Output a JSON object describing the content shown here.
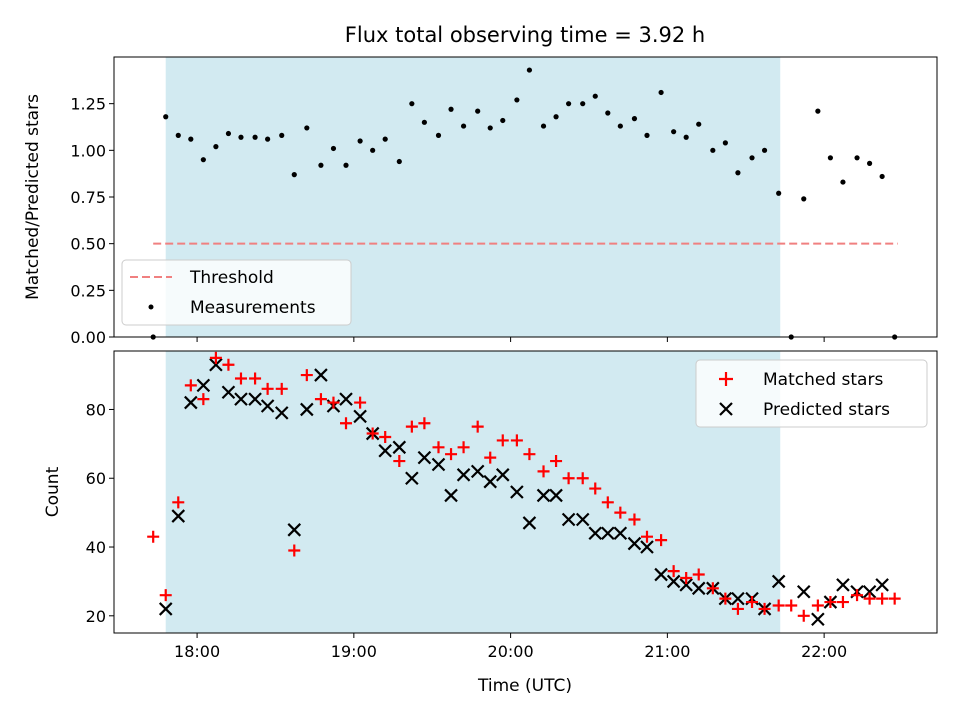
{
  "figure": {
    "title": "Flux total observing time = 3.92 h",
    "xlabel": "Time (UTC)",
    "x_ticks": [
      "18:00",
      "19:00",
      "20:00",
      "21:00",
      "22:00"
    ],
    "x_tick_hours": [
      18,
      19,
      20,
      21,
      22
    ],
    "xlim_hours": [
      17.47,
      22.72
    ],
    "shaded_interval_hours": [
      17.8,
      21.72
    ],
    "shade_color": "#add8e6"
  },
  "chart_data": [
    {
      "type": "scatter",
      "panel": "top",
      "ylabel": "Matched/Predicted stars",
      "ylim": [
        0,
        1.5
      ],
      "y_ticks": [
        0.0,
        0.25,
        0.5,
        0.75,
        1.0,
        1.25
      ],
      "y_tick_labels": [
        "0.00",
        "0.25",
        "0.50",
        "0.75",
        "1.00",
        "1.25"
      ],
      "threshold": {
        "name": "Threshold",
        "value": 0.5,
        "x_range_hours": [
          17.72,
          22.47
        ],
        "color": "#f08080"
      },
      "legend": {
        "location": "lower-left",
        "entries": [
          "Threshold",
          "Measurements"
        ]
      },
      "series": [
        {
          "name": "Measurements",
          "color": "#000000",
          "marker": "dot",
          "x_hours": [
            17.72,
            17.8,
            17.88,
            17.96,
            18.04,
            18.12,
            18.2,
            18.28,
            18.37,
            18.45,
            18.54,
            18.62,
            18.7,
            18.79,
            18.87,
            18.95,
            19.04,
            19.12,
            19.2,
            19.29,
            19.37,
            19.45,
            19.54,
            19.62,
            19.7,
            19.79,
            19.87,
            19.95,
            20.04,
            20.12,
            20.21,
            20.29,
            20.37,
            20.46,
            20.54,
            20.62,
            20.7,
            20.79,
            20.87,
            20.96,
            21.04,
            21.12,
            21.2,
            21.29,
            21.37,
            21.45,
            21.54,
            21.62,
            21.71,
            21.79,
            21.87,
            21.96,
            22.04,
            22.12,
            22.21,
            22.29,
            22.37,
            22.45
          ],
          "y": [
            0.0,
            1.18,
            1.08,
            1.06,
            0.95,
            1.02,
            1.09,
            1.07,
            1.07,
            1.06,
            1.08,
            0.87,
            1.12,
            0.92,
            1.01,
            0.92,
            1.05,
            1.0,
            1.06,
            0.94,
            1.25,
            1.15,
            1.08,
            1.22,
            1.13,
            1.21,
            1.12,
            1.16,
            1.27,
            1.43,
            1.13,
            1.18,
            1.25,
            1.25,
            1.29,
            1.2,
            1.13,
            1.17,
            1.08,
            1.31,
            1.1,
            1.07,
            1.14,
            1.0,
            1.04,
            0.88,
            0.96,
            1.0,
            0.77,
            0.0,
            0.74,
            1.21,
            0.96,
            0.83,
            0.96,
            0.93,
            0.86,
            0.0
          ]
        }
      ]
    },
    {
      "type": "scatter",
      "panel": "bottom",
      "ylabel": "Count",
      "ylim": [
        15,
        97
      ],
      "y_ticks": [
        20,
        40,
        60,
        80
      ],
      "y_tick_labels": [
        "20",
        "40",
        "60",
        "80"
      ],
      "legend": {
        "location": "top-right",
        "entries": [
          "Matched stars",
          "Predicted stars"
        ]
      },
      "series": [
        {
          "name": "Matched stars",
          "color": "#ff0000",
          "marker": "plus",
          "x_hours": [
            17.72,
            17.8,
            17.88,
            17.96,
            18.04,
            18.12,
            18.2,
            18.28,
            18.37,
            18.45,
            18.54,
            18.62,
            18.7,
            18.79,
            18.87,
            18.95,
            19.04,
            19.12,
            19.2,
            19.29,
            19.37,
            19.45,
            19.54,
            19.62,
            19.7,
            19.79,
            19.87,
            19.95,
            20.04,
            20.12,
            20.21,
            20.29,
            20.37,
            20.46,
            20.54,
            20.62,
            20.7,
            20.79,
            20.87,
            20.96,
            21.04,
            21.12,
            21.2,
            21.29,
            21.37,
            21.45,
            21.54,
            21.62,
            21.71,
            21.79,
            21.87,
            21.96,
            22.04,
            22.12,
            22.21,
            22.29,
            22.37,
            22.45
          ],
          "y": [
            43,
            26,
            53,
            87,
            83,
            95,
            93,
            89,
            89,
            86,
            86,
            39,
            90,
            83,
            82,
            76,
            82,
            73,
            72,
            65,
            75,
            76,
            69,
            67,
            69,
            75,
            66,
            71,
            71,
            67,
            62,
            65,
            60,
            60,
            57,
            53,
            50,
            48,
            43,
            42,
            33,
            31,
            32,
            28,
            25,
            22,
            24,
            22,
            23,
            23,
            20,
            23,
            24,
            24,
            26,
            25,
            25,
            25
          ]
        },
        {
          "name": "Predicted stars",
          "color": "#000000",
          "marker": "x",
          "x_hours": [
            17.8,
            17.88,
            17.96,
            18.04,
            18.12,
            18.2,
            18.28,
            18.37,
            18.45,
            18.54,
            18.62,
            18.7,
            18.79,
            18.87,
            18.95,
            19.04,
            19.12,
            19.2,
            19.29,
            19.37,
            19.45,
            19.54,
            19.62,
            19.7,
            19.79,
            19.87,
            19.95,
            20.04,
            20.12,
            20.21,
            20.29,
            20.37,
            20.46,
            20.54,
            20.62,
            20.7,
            20.79,
            20.87,
            20.96,
            21.04,
            21.12,
            21.2,
            21.29,
            21.37,
            21.45,
            21.54,
            21.62,
            21.71,
            21.87,
            21.96,
            22.04,
            22.12,
            22.21,
            22.29,
            22.37
          ],
          "y": [
            22,
            49,
            82,
            87,
            93,
            85,
            83,
            83,
            81,
            79,
            45,
            80,
            90,
            81,
            83,
            78,
            73,
            68,
            69,
            60,
            66,
            64,
            55,
            61,
            62,
            59,
            61,
            56,
            47,
            55,
            55,
            48,
            48,
            44,
            44,
            44,
            41,
            40,
            32,
            30,
            29,
            28,
            28,
            25,
            25,
            25,
            22,
            30,
            27,
            19,
            24,
            29,
            27,
            27,
            29
          ]
        }
      ]
    }
  ]
}
